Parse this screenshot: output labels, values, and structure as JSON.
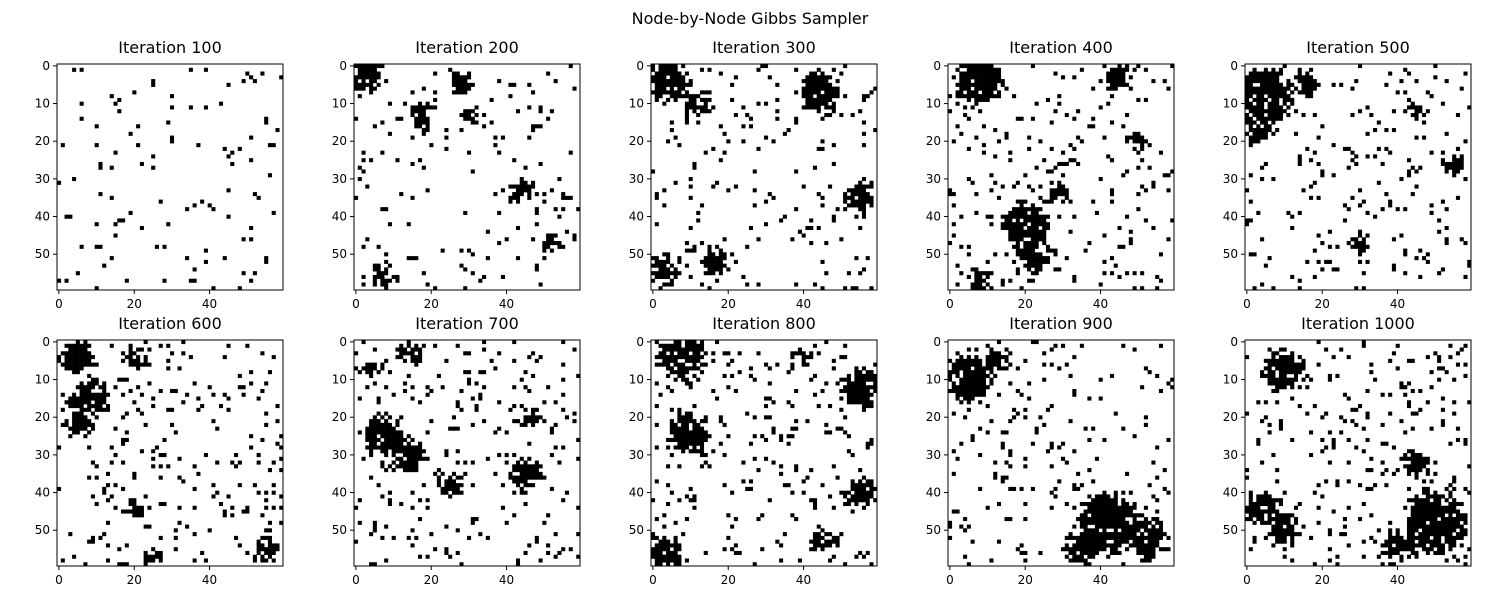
{
  "figure": {
    "title": "Node-by-Node Gibbs Sampler"
  },
  "chart_data": {
    "type": "heatmap",
    "description_cmap": "binary",
    "colors": {
      "on": "#000000",
      "off": "#ffffff"
    },
    "grid_size": 60,
    "x_ticks": [
      0,
      20,
      40
    ],
    "y_ticks": [
      0,
      10,
      20,
      30,
      40,
      50
    ],
    "xlim": [
      -0.5,
      59.5
    ],
    "ylim": [
      59.5,
      -0.5
    ],
    "panels": [
      {
        "title": "Iteration 100",
        "iteration": 100,
        "black_fraction": 0.05,
        "clusters": []
      },
      {
        "title": "Iteration 200",
        "iteration": 200,
        "black_fraction": 0.15,
        "clusters": [
          [
            3,
            3,
            4
          ],
          [
            13,
            18,
            3
          ],
          [
            4,
            28,
            3
          ],
          [
            13,
            31,
            2
          ],
          [
            33,
            44,
            3
          ],
          [
            56,
            8,
            3
          ],
          [
            47,
            52,
            2
          ]
        ]
      },
      {
        "title": "Iteration 300",
        "iteration": 300,
        "black_fraction": 0.18,
        "clusters": [
          [
            4,
            4,
            5
          ],
          [
            10,
            12,
            3
          ],
          [
            7,
            44,
            5
          ],
          [
            35,
            55,
            4
          ],
          [
            54,
            3,
            4
          ],
          [
            52,
            16,
            3
          ]
        ]
      },
      {
        "title": "Iteration 400",
        "iteration": 400,
        "black_fraction": 0.2,
        "clusters": [
          [
            4,
            8,
            6
          ],
          [
            3,
            45,
            3
          ],
          [
            42,
            20,
            6
          ],
          [
            50,
            22,
            4
          ],
          [
            57,
            8,
            3
          ],
          [
            20,
            50,
            2
          ],
          [
            33,
            28,
            3
          ]
        ]
      },
      {
        "title": "Iteration 500",
        "iteration": 500,
        "black_fraction": 0.2,
        "clusters": [
          [
            8,
            5,
            7
          ],
          [
            17,
            3,
            4
          ],
          [
            4,
            16,
            3
          ],
          [
            26,
            55,
            3
          ],
          [
            47,
            30,
            2
          ],
          [
            12,
            45,
            2
          ]
        ]
      },
      {
        "title": "Iteration 600",
        "iteration": 600,
        "black_fraction": 0.22,
        "clusters": [
          [
            4,
            5,
            4
          ],
          [
            15,
            8,
            5
          ],
          [
            22,
            5,
            3
          ],
          [
            4,
            20,
            3
          ],
          [
            55,
            55,
            3
          ],
          [
            57,
            25,
            2
          ],
          [
            45,
            20,
            2
          ]
        ]
      },
      {
        "title": "Iteration 700",
        "iteration": 700,
        "black_fraction": 0.24,
        "clusters": [
          [
            25,
            7,
            5
          ],
          [
            30,
            14,
            4
          ],
          [
            38,
            25,
            3
          ],
          [
            35,
            45,
            4
          ],
          [
            3,
            14,
            3
          ],
          [
            20,
            46,
            2
          ],
          [
            7,
            4,
            2
          ]
        ]
      },
      {
        "title": "Iteration 800",
        "iteration": 800,
        "black_fraction": 0.24,
        "clusters": [
          [
            4,
            8,
            6
          ],
          [
            24,
            9,
            5
          ],
          [
            12,
            55,
            5
          ],
          [
            40,
            55,
            4
          ],
          [
            56,
            3,
            4
          ],
          [
            53,
            45,
            3
          ],
          [
            4,
            40,
            2
          ]
        ]
      },
      {
        "title": "Iteration 900",
        "iteration": 900,
        "black_fraction": 0.22,
        "clusters": [
          [
            10,
            5,
            6
          ],
          [
            5,
            12,
            3
          ],
          [
            48,
            42,
            8
          ],
          [
            55,
            35,
            4
          ],
          [
            52,
            52,
            5
          ]
        ]
      },
      {
        "title": "Iteration 1000",
        "iteration": 1000,
        "black_fraction": 0.24,
        "clusters": [
          [
            8,
            10,
            5
          ],
          [
            44,
            4,
            4
          ],
          [
            50,
            10,
            4
          ],
          [
            48,
            50,
            8
          ],
          [
            54,
            40,
            4
          ],
          [
            32,
            45,
            3
          ]
        ]
      }
    ]
  }
}
